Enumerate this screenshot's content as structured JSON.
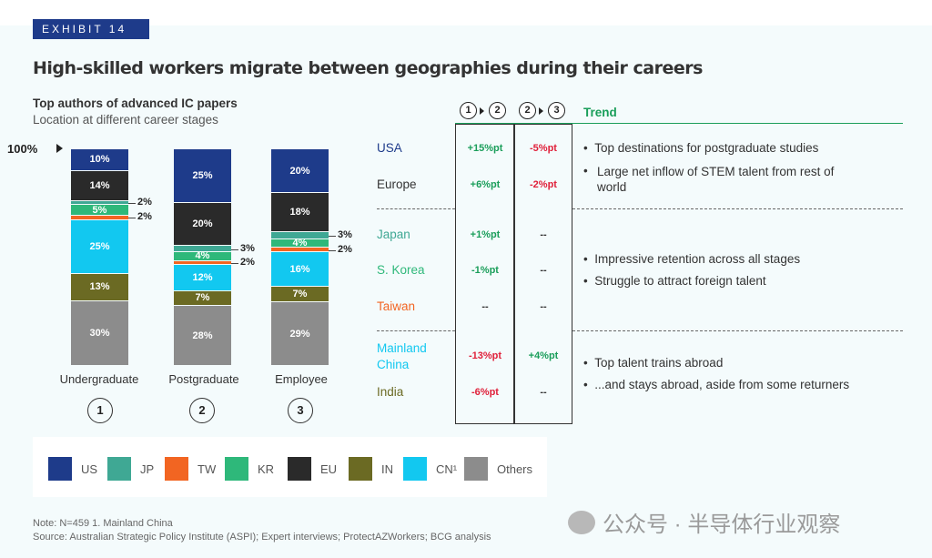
{
  "exhibit": "EXHIBIT 14",
  "title": "High-skilled workers migrate between geographies during their careers",
  "chart_title": "Top authors of advanced IC papers",
  "chart_subtitle": "Location at different career stages",
  "y_marker": "100%",
  "colors": {
    "US": "#1e3b8a",
    "JP": "#3fa894",
    "TW": "#f26522",
    "KR": "#2eb87a",
    "EU": "#2a2a2a",
    "IN": "#6b6a23",
    "CN": "#12c8f0",
    "Others": "#8c8c8c"
  },
  "chart_data": {
    "type": "bar",
    "stacked": true,
    "title": "Top authors of advanced IC papers",
    "subtitle": "Location at different career stages",
    "categories": [
      "Undergraduate",
      "Postgraduate",
      "Employee"
    ],
    "category_numbers": [
      "1",
      "2",
      "3"
    ],
    "ylim": [
      0,
      100
    ],
    "series": [
      {
        "name": "US",
        "values": [
          10,
          25,
          20
        ],
        "labels": [
          "10%",
          "25%",
          "20%"
        ]
      },
      {
        "name": "EU",
        "values": [
          14,
          20,
          18
        ],
        "labels": [
          "14%",
          "20%",
          "18%"
        ]
      },
      {
        "name": "JP",
        "values": [
          2,
          3,
          3
        ],
        "labels": [
          "2%",
          "3%",
          "3%"
        ]
      },
      {
        "name": "KR",
        "values": [
          5,
          4,
          4
        ],
        "labels": [
          "5%",
          "4%",
          "4%"
        ]
      },
      {
        "name": "TW",
        "values": [
          2,
          2,
          2
        ],
        "labels": [
          "2%",
          "2%",
          "2%"
        ]
      },
      {
        "name": "CN¹",
        "values": [
          25,
          12,
          16
        ],
        "labels": [
          "25%",
          "12%",
          "16%"
        ]
      },
      {
        "name": "IN",
        "values": [
          13,
          7,
          7
        ],
        "labels": [
          "13%",
          "7%",
          "7%"
        ]
      },
      {
        "name": "Others",
        "values": [
          30,
          28,
          29
        ],
        "labels": [
          "30%",
          "28%",
          "29%"
        ]
      }
    ]
  },
  "legend": [
    {
      "label": "US",
      "color": "#1e3b8a"
    },
    {
      "label": "JP",
      "color": "#3fa894"
    },
    {
      "label": "TW",
      "color": "#f26522"
    },
    {
      "label": "KR",
      "color": "#2eb87a"
    },
    {
      "label": "EU",
      "color": "#2a2a2a"
    },
    {
      "label": "IN",
      "color": "#6b6a23"
    },
    {
      "label": "CN¹",
      "color": "#12c8f0"
    },
    {
      "label": "Others",
      "color": "#8c8c8c"
    }
  ],
  "table": {
    "header_col1": [
      "1",
      "2"
    ],
    "header_col2": [
      "2",
      "3"
    ],
    "trend_header": "Trend",
    "rows": [
      {
        "region": "USA",
        "color": "#1e3b8a",
        "c12": "+15%pt",
        "c12_color": "#1a9e5a",
        "c23": "-5%pt",
        "c23_color": "#e0203a"
      },
      {
        "region": "Europe",
        "color": "#333333",
        "c12": "+6%pt",
        "c12_color": "#1a9e5a",
        "c23": "-2%pt",
        "c23_color": "#e0203a"
      },
      {
        "region": "Japan",
        "color": "#3fa894",
        "c12": "+1%pt",
        "c12_color": "#1a9e5a",
        "c23": "--",
        "c23_color": "#333333"
      },
      {
        "region": "S. Korea",
        "color": "#2eb87a",
        "c12": "-1%pt",
        "c12_color": "#1a9e5a",
        "c23": "--",
        "c23_color": "#333333"
      },
      {
        "region": "Taiwan",
        "color": "#f26522",
        "c12": "--",
        "c12_color": "#333333",
        "c23": "--",
        "c23_color": "#333333"
      },
      {
        "region": "Mainland China",
        "color": "#12c8f0",
        "c12": "-13%pt",
        "c12_color": "#e0203a",
        "c23": "+4%pt",
        "c23_color": "#1a9e5a"
      },
      {
        "region": "India",
        "color": "#6b6a23",
        "c12": "-6%pt",
        "c12_color": "#e0203a",
        "c23": "--",
        "c23_color": "#333333"
      }
    ],
    "trends": [
      "Top destinations for postgraduate studies",
      "Large net inflow of STEM talent from rest of world",
      "Impressive retention across all stages",
      "Struggle to attract foreign talent",
      "Top talent trains abroad",
      "...and stays abroad, aside from some returners"
    ]
  },
  "footnote": "Note: N=459 1. Mainland China",
  "source": "Source: Australian Strategic Policy Institute (ASPI); Expert interviews; ProtectAZWorkers; BCG analysis",
  "watermark": "公众号 · 半导体行业观察"
}
